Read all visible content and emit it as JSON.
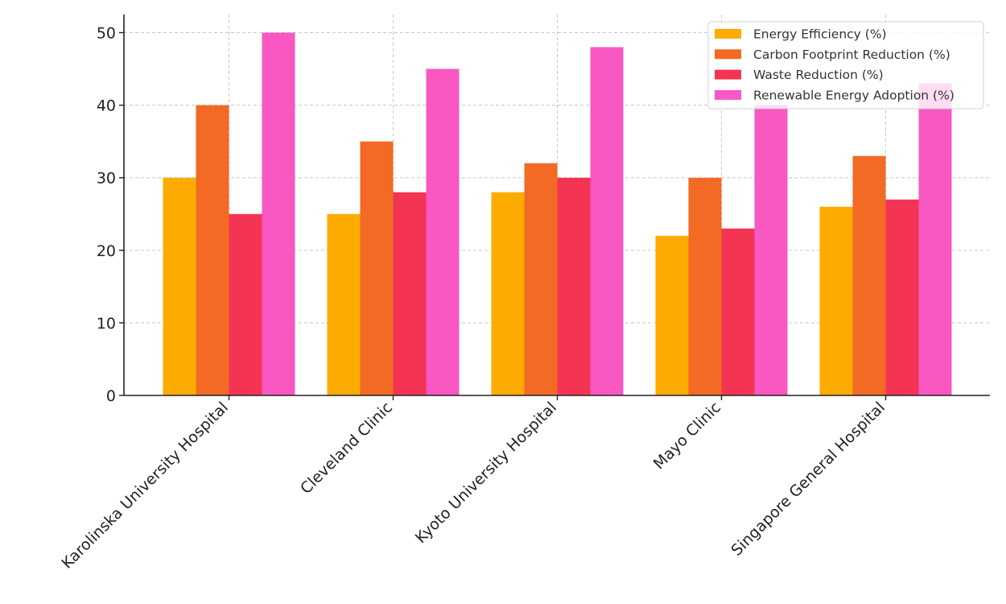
{
  "chart_data": {
    "type": "bar",
    "categories": [
      "Karolinska University Hospital",
      "Cleveland Clinic",
      "Kyoto University Hospital",
      "Mayo Clinic",
      "Singapore General Hospital"
    ],
    "series": [
      {
        "name": "Energy Efficiency (%)",
        "values": [
          30,
          25,
          28,
          22,
          26
        ],
        "color": "#fdab00"
      },
      {
        "name": "Carbon Footprint Reduction (%)",
        "values": [
          40,
          35,
          32,
          30,
          33
        ],
        "color": "#f36a24"
      },
      {
        "name": "Waste Reduction (%)",
        "values": [
          25,
          28,
          30,
          23,
          27
        ],
        "color": "#f43453"
      },
      {
        "name": "Renewable Energy Adoption (%)",
        "values": [
          50,
          45,
          48,
          40,
          43
        ],
        "color": "#f957c1"
      }
    ],
    "title": "",
    "xlabel": "",
    "ylabel": "",
    "ylim": [
      0,
      52.5
    ],
    "yticks": [
      0,
      10,
      20,
      30,
      40,
      50
    ],
    "grid": true,
    "legend_position": "top-right"
  }
}
